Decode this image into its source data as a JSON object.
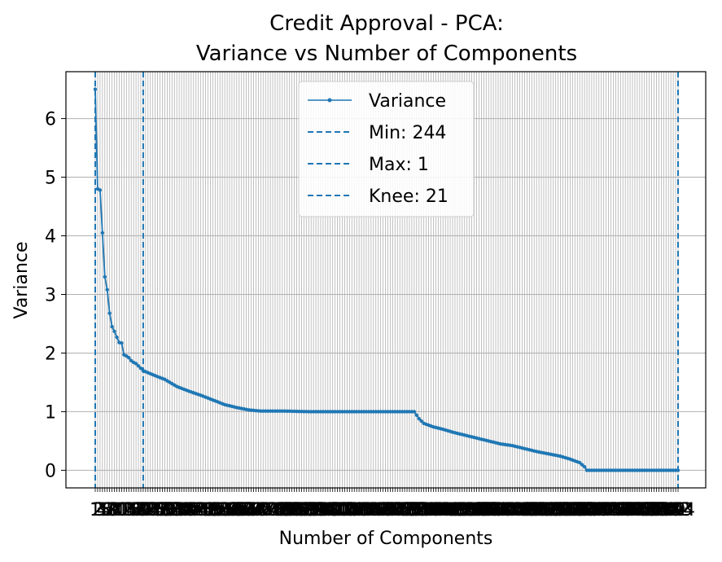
{
  "chart_data": {
    "type": "line",
    "title": "Credit Approval - PCA:",
    "subtitle": "Variance vs Number of Components",
    "xlabel": "Number of Components",
    "ylabel": "Variance",
    "xlim": [
      1,
      244
    ],
    "ylim": [
      -0.3,
      6.8
    ],
    "yticks": [
      0,
      1,
      2,
      3,
      4,
      5,
      6
    ],
    "grid": true,
    "legend_position": "top-center",
    "colors": {
      "line": "#1f77b4",
      "grid": "#b0b0b0",
      "axes": "#000000"
    },
    "series": [
      {
        "name": "Variance",
        "points": [
          [
            1,
            6.5
          ],
          [
            2,
            4.8
          ],
          [
            3,
            4.78
          ],
          [
            4,
            4.05
          ],
          [
            5,
            3.3
          ],
          [
            6,
            3.08
          ],
          [
            7,
            2.68
          ],
          [
            8,
            2.45
          ],
          [
            9,
            2.37
          ],
          [
            10,
            2.27
          ],
          [
            11,
            2.18
          ],
          [
            12,
            2.17
          ],
          [
            13,
            1.97
          ],
          [
            14,
            1.95
          ],
          [
            15,
            1.92
          ],
          [
            16,
            1.87
          ],
          [
            17,
            1.84
          ],
          [
            18,
            1.82
          ],
          [
            19,
            1.78
          ],
          [
            20,
            1.74
          ],
          [
            21,
            1.7
          ],
          [
            25,
            1.63
          ],
          [
            30,
            1.55
          ],
          [
            35,
            1.43
          ],
          [
            40,
            1.35
          ],
          [
            45,
            1.28
          ],
          [
            50,
            1.2
          ],
          [
            55,
            1.12
          ],
          [
            60,
            1.07
          ],
          [
            65,
            1.03
          ],
          [
            70,
            1.01
          ],
          [
            80,
            1.01
          ],
          [
            90,
            1.0
          ],
          [
            100,
            1.0
          ],
          [
            110,
            1.0
          ],
          [
            120,
            1.0
          ],
          [
            130,
            1.0
          ],
          [
            134,
            1.0
          ],
          [
            136,
            0.88
          ],
          [
            138,
            0.8
          ],
          [
            142,
            0.74
          ],
          [
            146,
            0.7
          ],
          [
            150,
            0.65
          ],
          [
            155,
            0.6
          ],
          [
            160,
            0.55
          ],
          [
            165,
            0.5
          ],
          [
            170,
            0.45
          ],
          [
            175,
            0.42
          ],
          [
            180,
            0.37
          ],
          [
            185,
            0.32
          ],
          [
            190,
            0.28
          ],
          [
            195,
            0.24
          ],
          [
            199,
            0.19
          ],
          [
            203,
            0.13
          ],
          [
            205,
            0.06
          ],
          [
            206,
            0.0
          ],
          [
            244,
            0.0
          ]
        ]
      }
    ],
    "vlines": [
      {
        "label": "Min: 244",
        "x": 244
      },
      {
        "label": "Max: 1",
        "x": 1
      },
      {
        "label": "Knee: 21",
        "x": 21
      }
    ]
  }
}
